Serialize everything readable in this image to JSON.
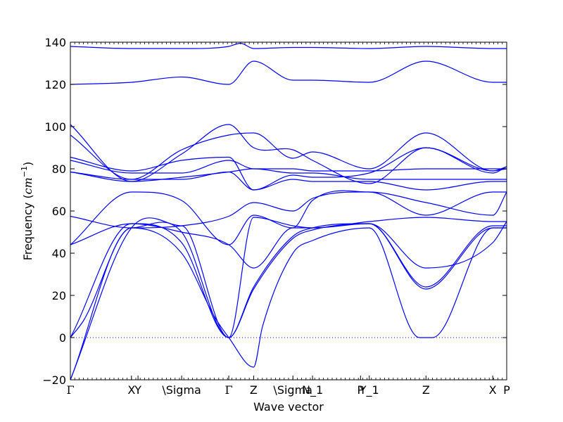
{
  "chart_data": {
    "type": "line",
    "title": "",
    "xlabel": "Wave vector",
    "ylabel_text": "Frequency (",
    "ylabel_unit": "cm",
    "ylabel_exp": "−1",
    "ylabel_close": ")",
    "ylabel": "Frequency (cm^-1)",
    "ylim": [
      -20,
      140
    ],
    "yticks": [
      -20,
      0,
      20,
      40,
      60,
      80,
      100,
      120,
      140
    ],
    "ytick_labels": [
      "−20",
      "0",
      "20",
      "40",
      "60",
      "80",
      "100",
      "120",
      "140"
    ],
    "xlim": [
      0,
      1
    ],
    "grid": false,
    "legend": "none",
    "line_color": "#0000ff",
    "zero_line_style": "dotted",
    "high_symmetry_points": [
      {
        "label": "Γ",
        "x": 0.0
      },
      {
        "label": "X",
        "x": 0.14
      },
      {
        "label": "Y",
        "x": 0.155
      },
      {
        "label": "\\Sigma",
        "x": 0.255
      },
      {
        "label": "Γ",
        "x": 0.363
      },
      {
        "label": "Z",
        "x": 0.42
      },
      {
        "label": "\\Sigma",
        "x": 0.51
      },
      {
        "label": "N_1",
        "x": 0.555
      },
      {
        "label": "P",
        "x": 0.665
      },
      {
        "label": "Y_1",
        "x": 0.685
      },
      {
        "label": "Z",
        "x": 0.815
      },
      {
        "label": "X",
        "x": 0.968
      },
      {
        "label": "P",
        "x": 1.0
      }
    ],
    "series": [
      {
        "x": [
          0,
          0.14,
          0.255,
          0.363,
          0.42,
          0.51,
          0.555,
          0.685,
          0.815,
          0.968,
          1.0
        ],
        "values": [
          -20,
          52,
          50,
          0,
          23,
          47,
          51,
          54,
          23,
          52,
          52
        ]
      },
      {
        "x": [
          0,
          0.14,
          0.255,
          0.363,
          0.42,
          0.51,
          0.555,
          0.685,
          0.815,
          0.968,
          1.0
        ],
        "values": [
          -20,
          52,
          53,
          0,
          24,
          48,
          52,
          54,
          24,
          53,
          53
        ]
      },
      {
        "x": [
          0,
          0.03,
          0.14,
          0.255,
          0.33,
          0.363,
          0.42,
          0.44,
          0.51,
          0.555,
          0.685,
          0.8,
          0.83,
          0.968,
          1.0
        ],
        "values": [
          0,
          8,
          52,
          40,
          10,
          0,
          -14,
          5,
          40,
          46,
          52,
          0,
          0,
          52,
          52
        ]
      },
      {
        "x": [
          0,
          0.14,
          0.255,
          0.363,
          0.42,
          0.51,
          0.555,
          0.685,
          0.815,
          0.968,
          1.0
        ],
        "values": [
          0,
          54,
          45,
          0,
          57,
          53,
          52,
          55,
          57,
          55,
          55
        ]
      },
      {
        "x": [
          0,
          0.14,
          0.255,
          0.363,
          0.42,
          0.51,
          0.555,
          0.685,
          0.815,
          0.968,
          1.0
        ],
        "values": [
          44,
          54,
          50,
          44,
          33,
          52,
          52,
          54,
          33,
          45,
          55
        ]
      },
      {
        "x": [
          0,
          0.14,
          0.255,
          0.363,
          0.42,
          0.51,
          0.555,
          0.685,
          0.815,
          0.968,
          1.0
        ],
        "values": [
          57.5,
          52,
          53,
          57.5,
          64,
          60,
          66,
          69,
          64,
          58,
          69
        ]
      },
      {
        "x": [
          0,
          0.14,
          0.255,
          0.363,
          0.42,
          0.51,
          0.555,
          0.685,
          0.815,
          0.968,
          1.0
        ],
        "values": [
          44,
          69,
          65,
          44,
          58,
          52,
          65,
          69,
          58,
          69,
          69
        ]
      },
      {
        "x": [
          0,
          0.14,
          0.255,
          0.363,
          0.42,
          0.51,
          0.555,
          0.685,
          0.815,
          0.968,
          1.0
        ],
        "values": [
          78.5,
          75,
          75,
          78.5,
          70,
          75,
          74,
          74,
          70,
          74,
          74
        ]
      },
      {
        "x": [
          0,
          0.14,
          0.255,
          0.363,
          0.42,
          0.51,
          0.555,
          0.685,
          0.815,
          0.968,
          1.0
        ],
        "values": [
          78.5,
          74,
          76,
          78.5,
          80,
          78,
          78,
          75,
          75,
          75,
          75
        ]
      },
      {
        "x": [
          0,
          0.14,
          0.255,
          0.363,
          0.42,
          0.51,
          0.555,
          0.685,
          0.815,
          0.968,
          1.0
        ],
        "values": [
          84,
          78,
          78,
          84,
          80,
          80,
          79,
          79,
          80,
          80,
          80
        ]
      },
      {
        "x": [
          0,
          0.14,
          0.255,
          0.363,
          0.42,
          0.51,
          0.555,
          0.685,
          0.815,
          0.968,
          1.0
        ],
        "values": [
          85.5,
          79,
          84,
          85.5,
          70,
          77,
          76,
          78,
          90,
          78,
          81
        ]
      },
      {
        "x": [
          0,
          0.14,
          0.255,
          0.363,
          0.42,
          0.51,
          0.555,
          0.685,
          0.815,
          0.968,
          1.0
        ],
        "values": [
          96,
          75,
          89,
          96,
          97,
          85,
          88,
          80,
          97,
          79,
          80
        ]
      },
      {
        "x": [
          0,
          0.14,
          0.255,
          0.363,
          0.42,
          0.51,
          0.555,
          0.685,
          0.815,
          0.968,
          1.0
        ],
        "values": [
          101,
          74,
          87,
          101,
          90,
          89,
          84,
          73,
          90,
          79,
          81
        ]
      },
      {
        "x": [
          0,
          0.14,
          0.255,
          0.363,
          0.42,
          0.51,
          0.555,
          0.685,
          0.815,
          0.968,
          1.0
        ],
        "values": [
          120,
          121,
          123.5,
          120,
          131,
          122,
          122,
          121,
          131,
          121,
          121
        ]
      },
      {
        "x": [
          0,
          0.14,
          0.255,
          0.363,
          0.39,
          0.42,
          0.51,
          0.555,
          0.685,
          0.815,
          0.968,
          1.0
        ],
        "values": [
          138,
          137,
          137,
          138,
          139.5,
          137,
          137.5,
          137.5,
          137,
          138,
          137,
          137
        ]
      }
    ]
  }
}
